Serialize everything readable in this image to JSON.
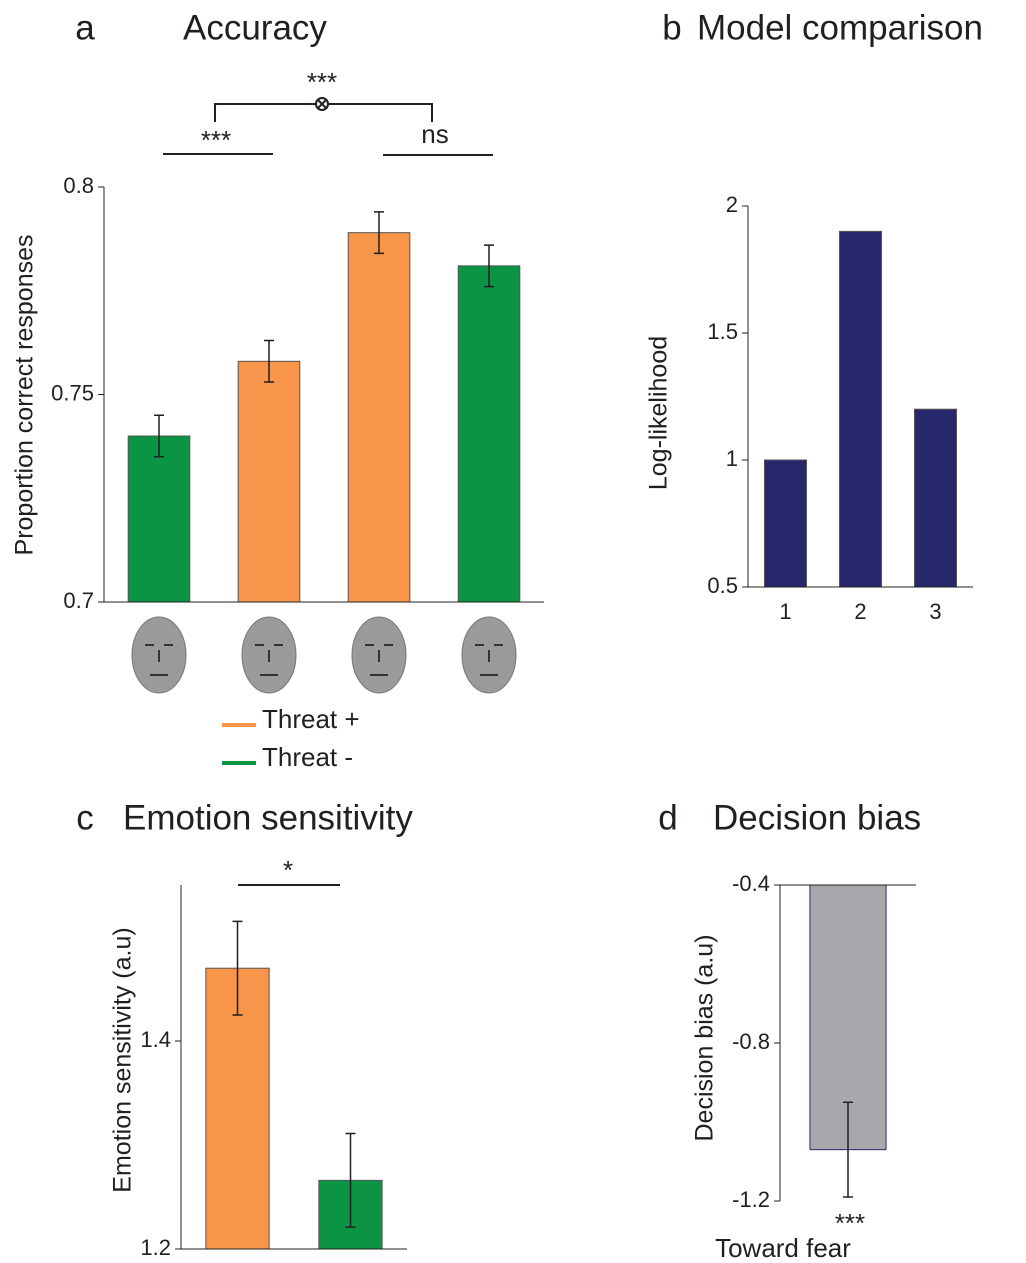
{
  "chart_data": [
    {
      "type": "bar",
      "panel_label": "a",
      "title": "Accuracy",
      "y_label": "Proportion correct responses",
      "categories": [
        null,
        null,
        null,
        null
      ],
      "series": [
        {
          "name": "Threat +",
          "color": "#f7954a",
          "values": [
            null,
            0.758,
            0.789,
            null
          ],
          "errors": [
            null,
            0.005,
            0.005,
            null
          ]
        },
        {
          "name": "Threat -",
          "color": "#0b9444",
          "values": [
            0.74,
            null,
            null,
            0.781
          ],
          "errors": [
            0.005,
            null,
            null,
            0.005
          ]
        }
      ],
      "ylim": [
        0.7,
        0.8
      ],
      "yticks": [
        0.7,
        0.75,
        0.8
      ],
      "grid": false,
      "annotations": [
        "***",
        "***",
        "ns"
      ]
    },
    {
      "type": "bar",
      "panel_label": "b",
      "title": "Model comparison",
      "y_label": "Log-likelihood",
      "categories": [
        "1",
        "2",
        "3"
      ],
      "series": [
        {
          "color": "#27286b",
          "values": [
            1.0,
            1.9,
            1.2
          ]
        }
      ],
      "ylim": [
        0.5,
        2
      ],
      "yticks": [
        0.5,
        1,
        1.5,
        2
      ],
      "grid": false
    },
    {
      "type": "bar",
      "panel_label": "c",
      "title": "Emotion sensitivity",
      "y_label": "Emotion sensitivity (a.u)",
      "categories": [
        null,
        null
      ],
      "series": [
        {
          "color": "#f7954a",
          "values": [
            1.47,
            null
          ],
          "errors": [
            0.045,
            null
          ]
        },
        {
          "color": "#0b9444",
          "values": [
            null,
            1.266
          ],
          "errors": [
            null,
            0.045
          ]
        }
      ],
      "ylim": [
        1.2,
        1.55
      ],
      "yticks": [
        1.2,
        1.4
      ],
      "grid": false,
      "annotations": [
        "*"
      ]
    },
    {
      "type": "bar",
      "panel_label": "d",
      "title": "Decision bias",
      "y_label": "Decision bias (a.u)",
      "x_label": "Toward fear",
      "categories": [
        null
      ],
      "series": [
        {
          "color": "#a6a8ab",
          "values": [
            -1.07
          ],
          "errors": [
            0.12
          ]
        }
      ],
      "ylim": [
        -1.2,
        -0.4
      ],
      "yticks": [
        -1.2,
        -0.8,
        -0.4
      ],
      "grid": false,
      "annotations": [
        "***"
      ]
    }
  ]
}
